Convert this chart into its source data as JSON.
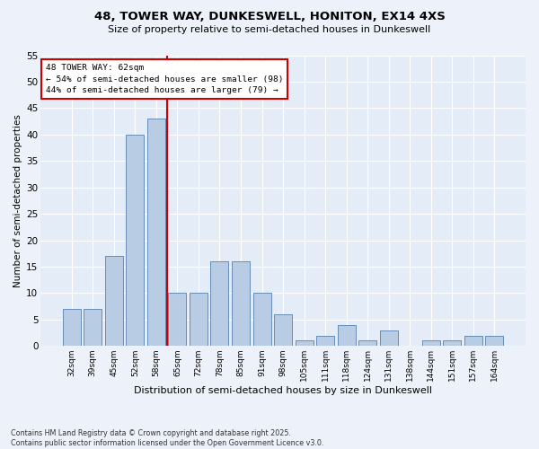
{
  "title1": "48, TOWER WAY, DUNKESWELL, HONITON, EX14 4XS",
  "title2": "Size of property relative to semi-detached houses in Dunkeswell",
  "xlabel": "Distribution of semi-detached houses by size in Dunkeswell",
  "ylabel": "Number of semi-detached properties",
  "categories": [
    "32sqm",
    "39sqm",
    "45sqm",
    "52sqm",
    "58sqm",
    "65sqm",
    "72sqm",
    "78sqm",
    "85sqm",
    "91sqm",
    "98sqm",
    "105sqm",
    "111sqm",
    "118sqm",
    "124sqm",
    "131sqm",
    "138sqm",
    "144sqm",
    "151sqm",
    "157sqm",
    "164sqm"
  ],
  "values": [
    7,
    7,
    17,
    40,
    43,
    10,
    10,
    16,
    16,
    10,
    6,
    1,
    2,
    4,
    1,
    3,
    0,
    1,
    1,
    2,
    2
  ],
  "bar_color": "#b8cce4",
  "bar_edge_color": "#5580b0",
  "vline_x_index": 4,
  "vline_color": "#cc0000",
  "annotation_title": "48 TOWER WAY: 62sqm",
  "annotation_line1": "← 54% of semi-detached houses are smaller (98)",
  "annotation_line2": "44% of semi-detached houses are larger (79) →",
  "annotation_box_color": "#cc0000",
  "ylim": [
    0,
    55
  ],
  "yticks": [
    0,
    5,
    10,
    15,
    20,
    25,
    30,
    35,
    40,
    45,
    50,
    55
  ],
  "footnote1": "Contains HM Land Registry data © Crown copyright and database right 2025.",
  "footnote2": "Contains public sector information licensed under the Open Government Licence v3.0.",
  "background_color": "#edf2fa",
  "plot_bg_color": "#e4ecf7"
}
